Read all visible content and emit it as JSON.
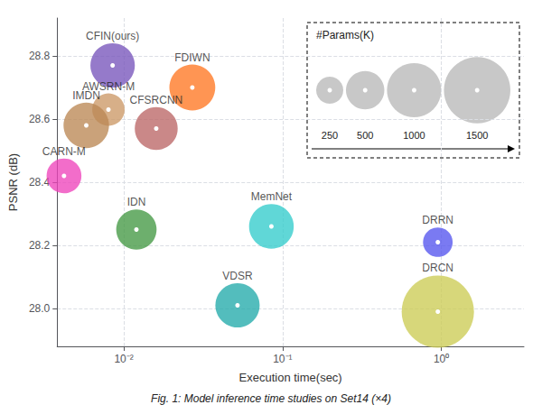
{
  "chart_data": {
    "type": "scatter",
    "xlabel": "Execution time(sec)",
    "ylabel": "PSNR (dB)",
    "caption": "Fig. 1: Model inference time studies on Set14 (×4)",
    "log": "x",
    "grid": true,
    "xlim": [
      0.00380189396,
      3.31131121
    ],
    "xticks": [
      {
        "value": 0.01,
        "label": "10⁻²"
      },
      {
        "value": 0.1,
        "label": "10⁻¹"
      },
      {
        "value": 1.0,
        "label": "10⁰"
      }
    ],
    "ylim": [
      27.88,
      28.92
    ],
    "yticks": [
      {
        "value": 28.0,
        "label": "28.0"
      },
      28.2,
      28.4,
      28.6,
      28.8
    ],
    "points": [
      {
        "name": "CFIN(ours)",
        "x": 0.0085,
        "y": 28.77,
        "size": 670,
        "color": "#7755BB"
      },
      {
        "name": "FDIWN",
        "x": 0.027,
        "y": 28.7,
        "size": 715,
        "color": "#FF7722"
      },
      {
        "name": "AWSRN-M",
        "x": 0.008,
        "y": 28.63,
        "size": 357,
        "color": "#CC9966"
      },
      {
        "name": "CFSRCNN",
        "x": 0.016,
        "y": 28.57,
        "size": 625,
        "color": "#BB6666"
      },
      {
        "name": "IMDN",
        "x": 0.0058,
        "y": 28.58,
        "size": 703,
        "color": "#BB8855"
      },
      {
        "name": "CARN-M",
        "x": 0.0042,
        "y": 28.42,
        "size": 412,
        "color": "#EE44BB"
      },
      {
        "name": "IDN",
        "x": 0.012,
        "y": 28.25,
        "size": 553,
        "color": "#449944"
      },
      {
        "name": "MemNet",
        "x": 0.085,
        "y": 28.26,
        "size": 677,
        "color": "#33CCCC"
      },
      {
        "name": "VDSR",
        "x": 0.052,
        "y": 28.01,
        "size": 665,
        "color": "#22AAAA"
      },
      {
        "name": "DRRN",
        "x": 0.95,
        "y": 28.21,
        "size": 297,
        "color": "#5555EE"
      },
      {
        "name": "DRCN",
        "x": 0.95,
        "y": 27.99,
        "size": 1774,
        "color": "#CCCC55"
      }
    ],
    "size_legend": {
      "title": "#Params(K)",
      "values": [
        250,
        500,
        1000,
        1500
      ],
      "color": "#aaaaaa"
    }
  }
}
